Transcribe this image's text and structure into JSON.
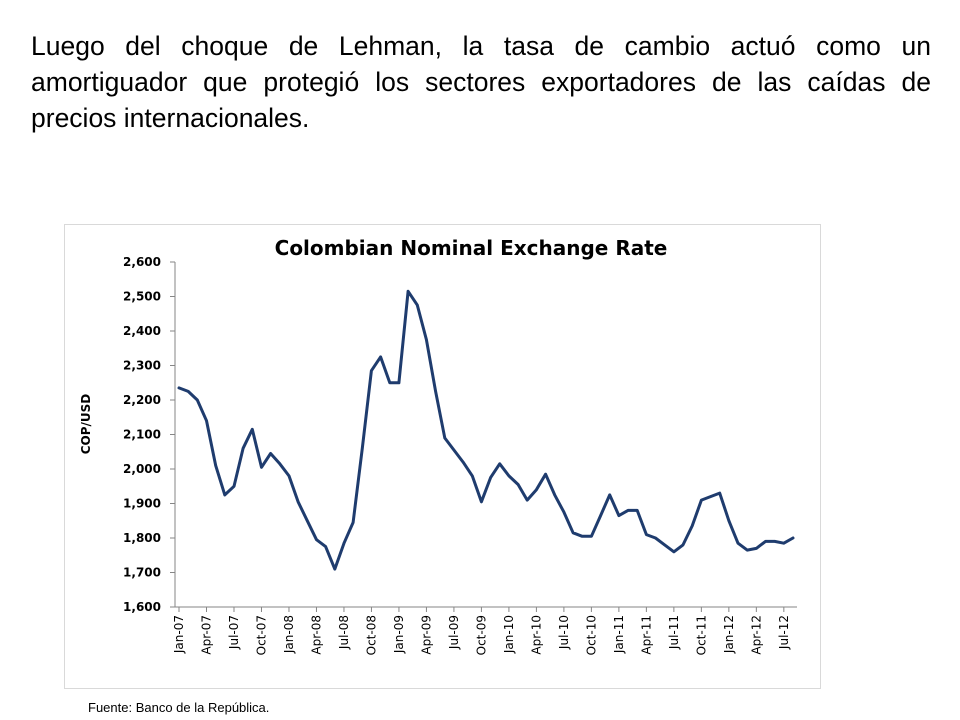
{
  "slide": {
    "text": "Luego del choque de Lehman, la tasa de cambio actuó como un amortiguador que protegió los sectores exportadores de las caídas de precios internacionales.",
    "source": "Fuente: Banco de la República."
  },
  "chart_data": {
    "type": "line",
    "title": "Colombian Nominal Exchange Rate",
    "xlabel": "",
    "ylabel": "COP/USD",
    "ylim": [
      1600,
      2600
    ],
    "yticks": [
      1600,
      1700,
      1800,
      1900,
      2000,
      2100,
      2200,
      2300,
      2400,
      2500,
      2600
    ],
    "ytick_labels": [
      "1,600",
      "1,700",
      "1,800",
      "1,900",
      "2,000",
      "2,100",
      "2,200",
      "2,300",
      "2,400",
      "2,500",
      "2,600"
    ],
    "xtick_labels": [
      "Jan-07",
      "Apr-07",
      "Jul-07",
      "Oct-07",
      "Jan-08",
      "Apr-08",
      "Jul-08",
      "Oct-08",
      "Jan-09",
      "Apr-09",
      "Jul-09",
      "Oct-09",
      "Jan-10",
      "Apr-10",
      "Jul-10",
      "Oct-10",
      "Jan-11",
      "Apr-11",
      "Jul-11",
      "Oct-11",
      "Jan-12",
      "Apr-12",
      "Jul-12"
    ],
    "grid": false,
    "line_color": "#1f3c6e",
    "series": [
      {
        "values": [
          2235,
          2225,
          2200,
          2140,
          2010,
          1925,
          1950,
          2060,
          2115,
          2005,
          2045,
          2015,
          1980,
          1905,
          1850,
          1795,
          1775,
          1710,
          1785,
          1845,
          2060,
          2285,
          2325,
          2250,
          2250,
          2515,
          2475,
          2375,
          2225,
          2090,
          2055,
          2020,
          1980,
          1905,
          1975,
          2015,
          1980,
          1955,
          1910,
          1940,
          1985,
          1925,
          1875,
          1815,
          1805,
          1805,
          1865,
          1925,
          1865,
          1880,
          1880,
          1810,
          1800,
          1780,
          1760,
          1780,
          1835,
          1910,
          1920,
          1930,
          1850,
          1785,
          1765,
          1770,
          1790,
          1790,
          1785,
          1800
        ]
      }
    ]
  }
}
